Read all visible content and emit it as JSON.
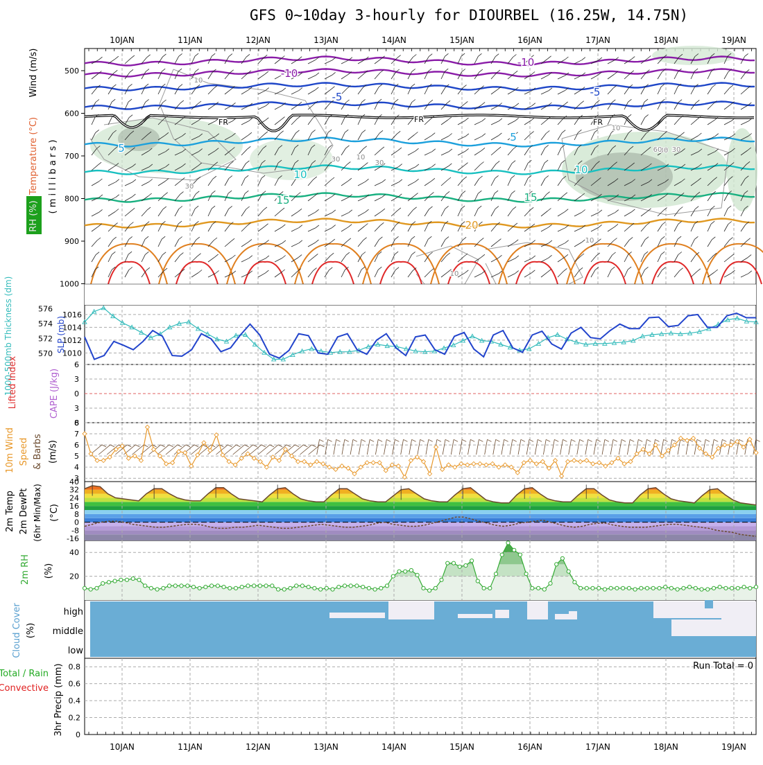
{
  "title": "GFS 0~10day 3-hourly for DIOURBEL (16.25W, 14.75N)",
  "dates": [
    "10JAN",
    "11JAN",
    "12JAN",
    "13JAN",
    "14JAN",
    "15JAN",
    "16JAN",
    "17JAN",
    "18JAN",
    "19JAN"
  ],
  "chart_data": [
    {
      "type": "contour",
      "panel": "upper-air",
      "ylabel_parts": [
        "RH (%)",
        "Temperature (°C)",
        "Wind (m/s)",
        "( m i l l i b a r s )"
      ],
      "yticks": [
        "500",
        "600",
        "700",
        "800",
        "900",
        "1000"
      ],
      "temperature_contour_labels": [
        "-10",
        "-10",
        "-5",
        "-5",
        "FR",
        "FR",
        "FR",
        "5",
        "5",
        "10",
        "10",
        "15",
        "15",
        "20"
      ],
      "rh_contour_labels": [
        "10",
        "10",
        "10",
        "30",
        "30",
        "30",
        "30",
        "30",
        "10",
        "60",
        "10"
      ]
    },
    {
      "type": "line",
      "panel": "thickness-slp",
      "ylabel_left": "1000-500mb Thickness (dm)",
      "ylabel_right": "SLP (mb)",
      "yticks_left": [
        "576",
        "574",
        "572",
        "570"
      ],
      "yticks_right": [
        "1016",
        "1014",
        "1012",
        "1010"
      ],
      "ylim_thickness": [
        568.5,
        576.5
      ],
      "ylim_slp": [
        1008.2,
        1017.5
      ],
      "series": [
        {
          "name": "1000-500mb Thickness (dm)",
          "color": "#33bbbb",
          "values": [
            574.2,
            575.6,
            576.1,
            575.0,
            574.1,
            573.5,
            572.8,
            572.1,
            572.6,
            573.5,
            574.0,
            574.2,
            573.3,
            572.6,
            571.9,
            571.6,
            572.4,
            572.5,
            571.2,
            570.1,
            569.2,
            569.2,
            569.8,
            570.3,
            570.6,
            570.3,
            570.1,
            570.2,
            570.2,
            570.4,
            570.9,
            571.2,
            571.0,
            570.9,
            570.6,
            570.3,
            570.2,
            570.3,
            570.7,
            571.1,
            571.7,
            572.3,
            571.7,
            571.6,
            571.2,
            570.8,
            570.4,
            570.6,
            571.3,
            572.1,
            572.5,
            571.9,
            571.5,
            571.2,
            571.3,
            571.3,
            571.4,
            571.5,
            571.7,
            572.3,
            572.5,
            572.6,
            572.7,
            572.6,
            572.7,
            572.9,
            573.3,
            573.9,
            574.5,
            574.7,
            574.3,
            574.2
          ]
        },
        {
          "name": "SLP (mb)",
          "color": "#2244cc",
          "values": [
            1012.5,
            1009.0,
            1009.6,
            1011.8,
            1011.2,
            1010.5,
            1011.8,
            1013.5,
            1012.6,
            1009.6,
            1009.5,
            1010.5,
            1013.0,
            1012.2,
            1010.2,
            1010.8,
            1012.8,
            1014.5,
            1012.8,
            1009.8,
            1009.2,
            1010.4,
            1013.0,
            1012.7,
            1010.0,
            1009.8,
            1012.5,
            1013.0,
            1010.5,
            1009.8,
            1012.0,
            1013.0,
            1010.8,
            1009.6,
            1012.5,
            1012.8,
            1010.5,
            1009.8,
            1012.6,
            1013.2,
            1010.6,
            1009.4,
            1012.8,
            1013.5,
            1010.8,
            1010.1,
            1012.8,
            1013.4,
            1011.4,
            1010.6,
            1013.1,
            1014.0,
            1012.4,
            1012.2,
            1013.5,
            1014.5,
            1013.8,
            1013.8,
            1015.5,
            1015.6,
            1014.1,
            1014.3,
            1015.8,
            1016.0,
            1014.0,
            1014.0,
            1015.8,
            1016.2,
            1015.5,
            1015.5
          ]
        }
      ]
    },
    {
      "type": "line",
      "panel": "lifted-index-cape",
      "ylabel_left": "Lifted Index",
      "ylabel_right": "CAPE (J/kg)",
      "yticks": [
        "6",
        "3",
        "0",
        "3",
        "6"
      ],
      "ylim": [
        -6,
        6
      ],
      "series": []
    },
    {
      "type": "line",
      "panel": "10m-wind",
      "ylabel_parts": [
        "10m Wind",
        "Speed",
        "& Barbs",
        "(m/s)"
      ],
      "yticks": [
        "8",
        "7",
        "6",
        "5",
        "4",
        "3"
      ],
      "ylim": [
        2.7,
        8.0
      ],
      "series": [
        {
          "name": "10m Wind Speed",
          "color": "#e8982a",
          "values": [
            7.0,
            5.2,
            4.6,
            4.6,
            4.9,
            5.6,
            5.9,
            4.8,
            5.0,
            4.6,
            7.6,
            5.6,
            5.0,
            4.3,
            4.4,
            5.4,
            5.3,
            4.1,
            5.1,
            6.2,
            5.5,
            6.9,
            5.1,
            4.5,
            4.2,
            4.8,
            5.2,
            4.8,
            4.5,
            4.0,
            4.9,
            4.6,
            5.6,
            5.0,
            4.5,
            4.5,
            4.2,
            4.5,
            4.3,
            4.0,
            3.8,
            4.1,
            3.9,
            3.4,
            4.0,
            4.4,
            4.4,
            4.4,
            3.7,
            4.2,
            4.1,
            3.1,
            4.6,
            4.9,
            4.5,
            3.4,
            5.8,
            3.8,
            4.2,
            4.0,
            4.3,
            4.2,
            4.3,
            4.3,
            4.2,
            4.3,
            4.0,
            4.2,
            4.0,
            3.5,
            4.4,
            4.6,
            4.3,
            4.5,
            3.9,
            4.6,
            3.2,
            4.5,
            4.6,
            4.5,
            4.6,
            4.3,
            4.4,
            4.1,
            4.4,
            4.8,
            4.3,
            4.5,
            5.2,
            5.6,
            5.2,
            6.0,
            5.0,
            5.5,
            6.0,
            6.6,
            6.4,
            6.6,
            5.7,
            5.2,
            4.9,
            5.7,
            6.0,
            6.0,
            6.3,
            5.8,
            6.5,
            5.3
          ]
        }
      ]
    },
    {
      "type": "area",
      "panel": "2m-temp",
      "ylabel_parts": [
        "2m Temp",
        "2m DewPt",
        "(6hr Min/Max)",
        "(°C)"
      ],
      "yticks": [
        "40",
        "32",
        "24",
        "16",
        "8",
        "0",
        "-8",
        "-16"
      ],
      "ylim": [
        -18,
        40
      ],
      "series": [
        {
          "name": "2m Temp",
          "color": "#6b4a2e",
          "values": [
            33,
            36,
            35,
            28,
            24,
            23,
            22,
            21,
            28,
            33,
            33,
            28,
            24,
            22,
            21,
            21,
            28,
            34,
            34,
            28,
            23,
            22,
            21,
            20,
            27,
            33,
            34,
            28,
            23,
            21,
            20,
            20,
            27,
            33,
            33,
            28,
            23,
            21,
            20,
            20,
            26,
            32,
            33,
            28,
            23,
            21,
            20,
            20,
            27,
            33,
            34,
            28,
            22,
            20,
            19,
            19,
            27,
            33,
            34,
            28,
            23,
            21,
            20,
            20,
            27,
            33,
            33,
            27,
            22,
            20,
            19,
            19,
            27,
            33,
            34,
            28,
            23,
            21,
            20,
            19,
            26,
            32,
            33,
            27,
            22,
            19,
            18,
            17
          ]
        },
        {
          "name": "2m DewPt",
          "color": "#6b4a2e",
          "values": [
            -4,
            -2,
            0,
            1,
            1,
            0,
            -2,
            -3,
            -4,
            -5,
            -5,
            -4,
            -3,
            -2,
            -2,
            -3,
            -5,
            -6,
            -6,
            -5,
            -5,
            -4,
            -3,
            -4,
            -5,
            -6,
            -6,
            -5,
            -4,
            -3,
            -2,
            -3,
            -4,
            -5,
            -5,
            -4,
            -3,
            -1,
            0,
            -2,
            -3,
            -4,
            -4,
            -3,
            -1,
            1,
            3,
            5,
            5,
            3,
            1,
            -1,
            -3,
            -4,
            -3,
            -1,
            0,
            1,
            2,
            0,
            -2,
            -4,
            -5,
            -4,
            -2,
            -1,
            -1,
            -3,
            -4,
            -5,
            -5,
            -5,
            -4,
            -3,
            -2,
            -2,
            -3,
            -4,
            -5,
            -6,
            -8,
            -9,
            -10,
            -12,
            -13,
            -14
          ]
        }
      ]
    },
    {
      "type": "area",
      "panel": "2m-rh",
      "ylabel_parts": [
        "2m RH",
        "(%)"
      ],
      "yticks": [
        "40",
        "20"
      ],
      "ylim": [
        0,
        50
      ],
      "series": [
        {
          "name": "2m RH",
          "color": "#33aa33",
          "values": [
            10,
            9,
            10,
            14,
            15,
            16,
            17,
            17,
            18,
            17,
            12,
            10,
            9,
            10,
            12,
            12,
            12,
            12,
            11,
            10,
            11,
            12,
            12,
            11,
            10,
            10,
            11,
            12,
            12,
            12,
            12,
            12,
            9,
            9,
            10,
            12,
            12,
            11,
            10,
            9,
            10,
            9,
            11,
            12,
            12,
            12,
            11,
            10,
            9,
            10,
            12,
            20,
            24,
            24,
            25,
            21,
            10,
            8,
            10,
            17,
            31,
            31,
            28,
            29,
            33,
            16,
            10,
            10,
            22,
            38,
            48,
            42,
            38,
            22,
            10,
            10,
            9,
            14,
            30,
            35,
            24,
            15,
            10,
            10,
            10,
            10,
            9,
            10,
            10,
            10,
            10,
            9,
            10,
            10,
            10,
            10,
            11,
            10,
            9,
            10,
            11,
            10,
            9,
            9,
            10,
            11,
            10,
            10,
            10,
            11,
            10,
            11
          ]
        }
      ]
    },
    {
      "type": "heatmap",
      "panel": "cloud-cover",
      "ylabel_parts": [
        "Cloud Cover",
        "(%)"
      ],
      "yticks": [
        "high",
        "middle",
        "low"
      ]
    },
    {
      "type": "bar",
      "panel": "3hr-precip",
      "ylabel_parts": [
        "Total / Rain",
        "Convective",
        "3hr Precip (mm)"
      ],
      "yticks": [
        "0.8",
        "0.6",
        "0.4",
        "0.2",
        "0"
      ],
      "ylim": [
        0,
        0.9
      ],
      "run_total": "Run Total = 0",
      "values": []
    }
  ],
  "colors": {
    "grid": "#aaaaaa",
    "cloud_blue": "#6aadd5",
    "cloud_white": "#f0eef5",
    "rh_green": "#3c9a3c",
    "temp_purple": "#8a1ca8",
    "temp_blue": "#1e46c8",
    "temp_cyan": "#1ca0dc",
    "temp_teal": "#18c0c0",
    "temp_green": "#18b080",
    "temp_orange": "#e09820",
    "temp_red": "#e02828"
  }
}
